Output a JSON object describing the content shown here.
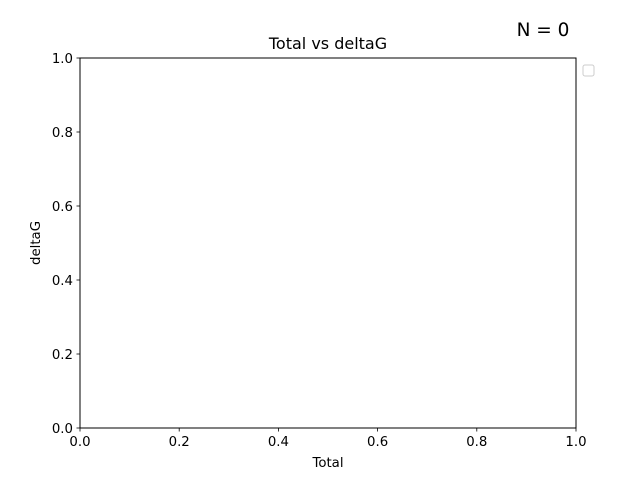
{
  "chart_data": {
    "type": "scatter",
    "title": "Total vs deltaG",
    "xlabel": "Total",
    "ylabel": "deltaG",
    "xlim": [
      0.0,
      1.0
    ],
    "ylim": [
      0.0,
      1.0
    ],
    "xticks": [
      "0.0",
      "0.2",
      "0.4",
      "0.6",
      "0.8",
      "1.0"
    ],
    "yticks": [
      "0.0",
      "0.2",
      "0.4",
      "0.6",
      "0.8",
      "1.0"
    ],
    "x": [],
    "y": [],
    "series": [],
    "grid": false,
    "legend": "outside-top-right",
    "annotation": "N = 0",
    "colors": {
      "axis": "#000000",
      "legend_border": "#cccccc",
      "background": "#ffffff"
    }
  }
}
